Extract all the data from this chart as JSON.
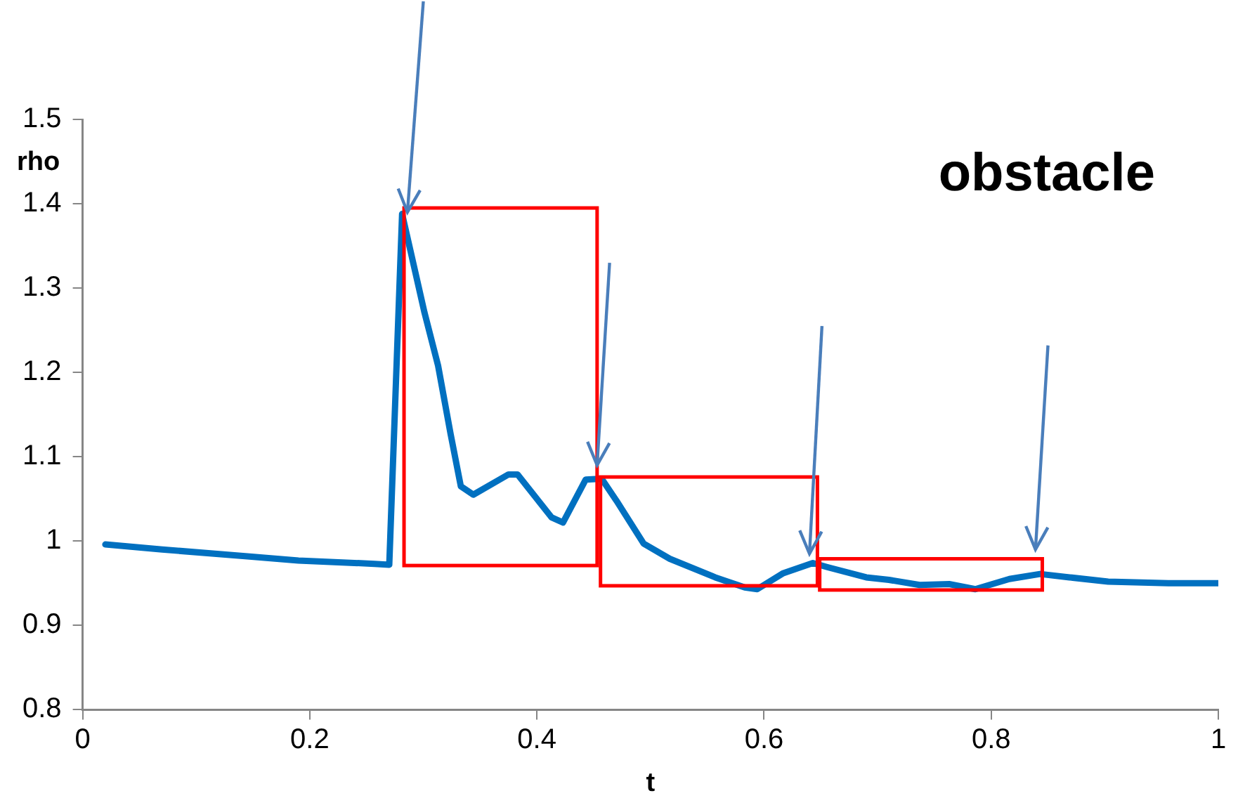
{
  "chart_data": {
    "type": "line",
    "xlabel": "t",
    "ylabel": "rho",
    "annotations": [
      "obstacle"
    ],
    "x": [
      0.02,
      0.07,
      0.145,
      0.19,
      0.257,
      0.27,
      0.2813,
      0.301,
      0.313,
      0.324,
      0.333,
      0.344,
      0.375,
      0.383,
      0.413,
      0.423,
      0.443,
      0.457,
      0.47,
      0.494,
      0.517,
      0.557,
      0.583,
      0.594,
      0.617,
      0.643,
      0.656,
      0.69,
      0.71,
      0.737,
      0.763,
      0.786,
      0.816,
      0.843,
      0.869,
      0.903,
      0.956,
      1.0
    ],
    "series": [
      {
        "color": "#0070c0",
        "values": [
          0.996,
          0.99,
          0.982,
          0.977,
          0.973,
          0.972,
          1.388,
          1.271,
          1.208,
          1.127,
          1.065,
          1.055,
          1.079,
          1.079,
          1.028,
          1.022,
          1.073,
          1.074,
          1.048,
          0.997,
          0.979,
          0.957,
          0.945,
          0.943,
          0.962,
          0.974,
          0.969,
          0.957,
          0.954,
          0.948,
          0.949,
          0.943,
          0.955,
          0.961,
          0.957,
          0.952,
          0.95,
          0.95
        ]
      }
    ],
    "xlim": [
      0,
      1
    ],
    "xticks": [
      0,
      0.2,
      0.4,
      0.6,
      0.8,
      1
    ],
    "ylim": [
      0.8,
      1.5
    ],
    "yticks": [
      0.8,
      0.9,
      1,
      1.1,
      1.2,
      1.3,
      1.4,
      1.5
    ],
    "marker": "none",
    "line_style": "solid",
    "legend": false
  }
}
